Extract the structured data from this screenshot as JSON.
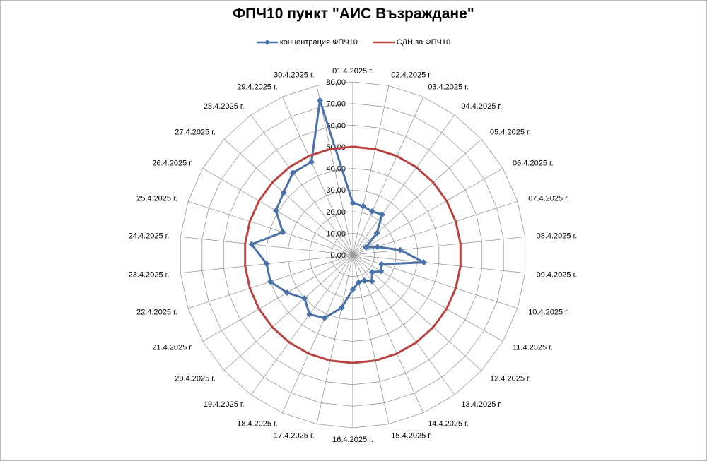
{
  "chart_data": {
    "type": "radar",
    "title": "ФПЧ10 пункт \"АИС Възраждане\"",
    "categories": [
      "01.4.2025 г.",
      "02.4.2025 г.",
      "03.4.2025 г.",
      "04.4.2025 г.",
      "05.4.2025 г.",
      "06.4.2025 г.",
      "07.4.2025 г.",
      "08.4.2025 г.",
      "09.4.2025 г.",
      "10.4.2025 г.",
      "11.4.2025 г.",
      "12.4.2025 г.",
      "13.4.2025 г.",
      "14.4.2025 г.",
      "15.4.2025 г.",
      "16.4.2025 г.",
      "17.4.2025 г.",
      "18.4.2025 г.",
      "19.4.2025 г.",
      "20.4.2025 г.",
      "21.4.2025 г.",
      "22.4.2025 г.",
      "23.4.2025 г.",
      "24.4.2025 г.",
      "25.4.2025 г.",
      "26.4.2025 г.",
      "27.4.2025 г.",
      "28.4.2025 г.",
      "29.4.2025 г.",
      "30.4.2025 г."
    ],
    "rlim": [
      0,
      80
    ],
    "rticks": [
      "0,00",
      "10,00",
      "20,00",
      "30,00",
      "40,00",
      "50,00",
      "60,00",
      "70,00",
      "80,00"
    ],
    "series": [
      {
        "name": "концентрация  ФПЧ10",
        "color": "#4a72a8",
        "values": [
          24,
          23,
          22,
          23,
          15,
          7,
          12,
          22,
          33,
          14,
          15,
          12,
          15,
          13,
          13,
          16,
          25,
          32,
          34,
          30,
          35,
          40,
          40,
          47,
          34,
          41,
          43,
          47,
          47,
          73
        ]
      },
      {
        "name": "СДН за ФПЧ10",
        "color": "#b84340",
        "values": [
          50,
          50,
          50,
          50,
          50,
          50,
          50,
          50,
          50,
          50,
          50,
          50,
          50,
          50,
          50,
          50,
          50,
          50,
          50,
          50,
          50,
          50,
          50,
          50,
          50,
          50,
          50,
          50,
          50,
          50
        ]
      }
    ],
    "grid": true,
    "legend_position": "top"
  }
}
